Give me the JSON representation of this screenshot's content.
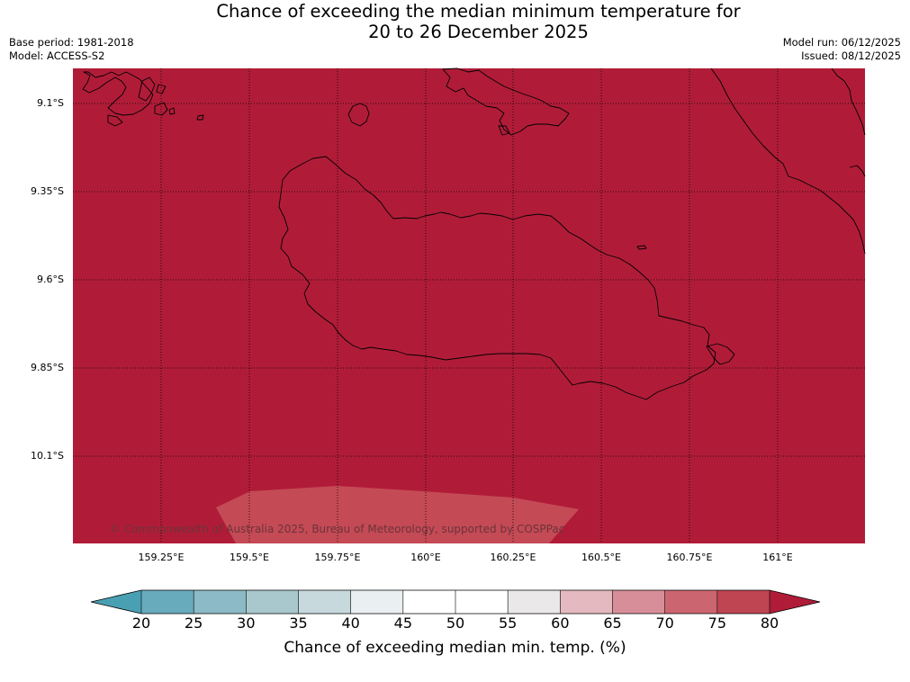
{
  "title": {
    "line1": "Chance of exceeding the median minimum temperature for",
    "line2": "20 to 26 December 2025"
  },
  "meta": {
    "base_period": "Base period: 1981-2018",
    "model": "Model: ACCESS-S2",
    "model_run": "Model run: 06/12/2025",
    "issued": "Issued: 08/12/2025"
  },
  "map": {
    "background_color": "#b01c38",
    "lower_band_color": "#c44a56",
    "lat_labels": [
      "9.1°S",
      "9.35°S",
      "9.6°S",
      "9.85°S",
      "10.1°S"
    ],
    "lon_labels": [
      "159.25°E",
      "159.5°E",
      "159.75°E",
      "160°E",
      "160.25°E",
      "160.5°E",
      "160.75°E",
      "161°E"
    ],
    "copyright": "© Commonwealth of Australia 2025, Bureau of Meteorology, supported by COSPPac"
  },
  "colorbar": {
    "ticks": [
      "20",
      "25",
      "30",
      "35",
      "40",
      "45",
      "50",
      "55",
      "60",
      "65",
      "70",
      "75",
      "80"
    ],
    "colors": [
      "#4aa0b3",
      "#68abbd",
      "#8cbac6",
      "#a8c8cd",
      "#c7d9dc",
      "#eaf0f2",
      "#ffffff",
      "#ffffff",
      "#ebe8ea",
      "#e4b9c0",
      "#d88e98",
      "#cb6670",
      "#bf4553",
      "#b01c38"
    ],
    "label": "Chance of exceeding median min. temp. (%)"
  }
}
